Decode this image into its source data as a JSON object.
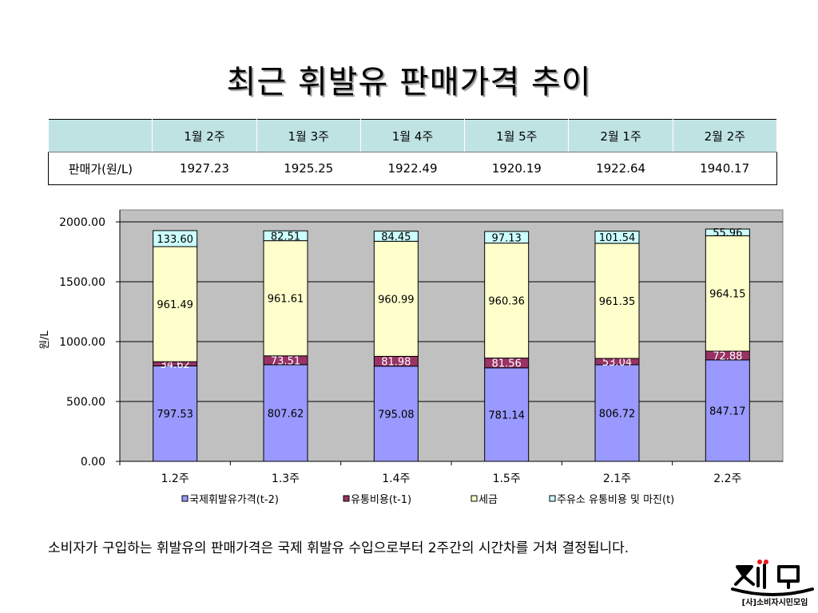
{
  "title": "최근 휘발유 판매가격 추이",
  "table": {
    "corner": "",
    "columns": [
      "1월 2주",
      "1월 3주",
      "1월 4주",
      "1월 5주",
      "2월 1주",
      "2월 2주"
    ],
    "row_label": "판매가(원/L)",
    "values": [
      "1927.23",
      "1925.25",
      "1922.49",
      "1920.19",
      "1922.64",
      "1940.17"
    ]
  },
  "chart_data": {
    "type": "bar",
    "stacked": true,
    "categories": [
      "1.2주",
      "1.3주",
      "1.4주",
      "1.5주",
      "2.1주",
      "2.2주"
    ],
    "series": [
      {
        "name": "국제휘발유가격(t-2)",
        "values": [
          797.53,
          807.62,
          795.08,
          781.14,
          806.72,
          847.17
        ],
        "labels": [
          "797.53",
          "807.62",
          "795.08",
          "781.14",
          "806.72",
          "847.17"
        ],
        "color": "#9999ff",
        "label_color": "#000000"
      },
      {
        "name": "유통비용(t-1)",
        "values": [
          34.62,
          73.51,
          81.98,
          81.56,
          53.04,
          72.88
        ],
        "labels": [
          "34.62",
          "73.51",
          "81.98",
          "81.56",
          "53.04",
          "72.88"
        ],
        "color": "#993366",
        "label_color": "#ffffff"
      },
      {
        "name": "세금",
        "values": [
          961.49,
          961.61,
          960.99,
          960.36,
          961.35,
          964.15
        ],
        "labels": [
          "961.49",
          "961.61",
          "960.99",
          "960.36",
          "961.35",
          "964.15"
        ],
        "color": "#ffffcc",
        "label_color": "#000000"
      },
      {
        "name": "주유소 유통비용 및 마진(t)",
        "values": [
          133.6,
          82.51,
          84.45,
          97.13,
          101.54,
          55.96
        ],
        "labels": [
          "133.60",
          "82.51",
          "84.45",
          "97.13",
          "101.54",
          "55.96"
        ],
        "color": "#ccffff",
        "label_color": "#000000"
      }
    ],
    "ylabel": "원/L",
    "xlabel": "",
    "ylim": [
      0,
      2000
    ],
    "yticks": [
      "0.00",
      "500.00",
      "1000.00",
      "1500.00",
      "2000.00"
    ],
    "grid": true,
    "legend": "bottom",
    "plot_bg": "#c0c0c0"
  },
  "caption": "소비자가 구입하는 휘발유의 판매가격은 국제 휘발유 수입으로부터 2주간의 시간차를 거쳐 결정됩니다.",
  "logo": {
    "brand": "소시모",
    "org": "[사]소비자시민모임",
    "color": "#000000",
    "dot_color": "#e8161c"
  }
}
